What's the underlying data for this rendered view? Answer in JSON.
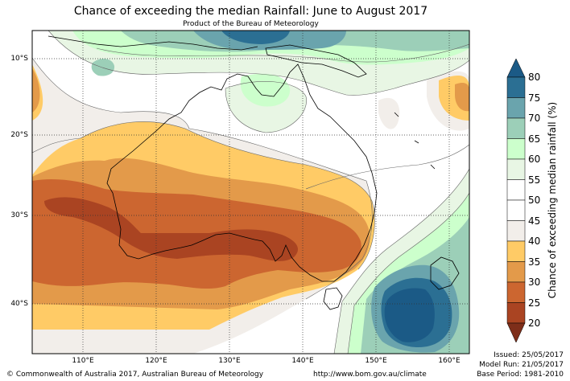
{
  "title": "Chance of exceeding the median Rainfall: June to August 2017",
  "subtitle": "Product of the Bureau of Meteorology",
  "lat_labels": [
    "10°S",
    "20°S",
    "30°S",
    "40°S"
  ],
  "lon_labels": [
    "110°E",
    "120°E",
    "130°E",
    "140°E",
    "150°E",
    "160°E"
  ],
  "colorbar": {
    "label": "Chance of exceeding median rainfall (%)",
    "ticks": [
      "80",
      "75",
      "70",
      "65",
      "60",
      "55",
      "50",
      "45",
      "40",
      "35",
      "30",
      "25",
      "20"
    ],
    "colors": {
      "75-80": "#2b6f93",
      "70-75": "#6aa4ad",
      "65-70": "#9ccfb8",
      "60-65": "#ccffcc",
      "55-60": "#e8f6e4",
      "50-55": "#ffffff",
      "45-50": "#ffffff",
      "40-45": "#f2eeea",
      "35-40": "#ffcb66",
      "30-35": "#e39a4a",
      "25-30": "#cc6630",
      "20-25": "#aa4422",
      "above": "#1b5a86",
      "below": "#7e2e1a"
    }
  },
  "footer": {
    "copyright": "© Commonwealth of Australia 2017, Australian Bureau of Meteorology",
    "url": "http://www.bom.gov.au/climate",
    "issued": "Issued: 25/05/2017",
    "model_run": "Model Run: 21/05/2017",
    "base_period": "Base Period: 1981-2010"
  }
}
